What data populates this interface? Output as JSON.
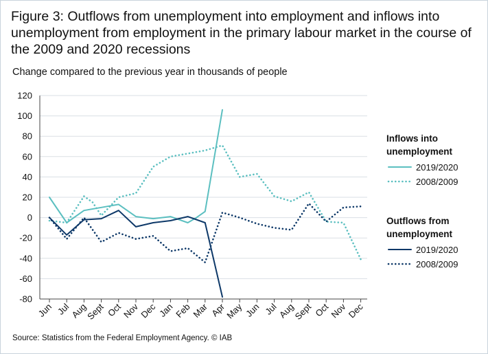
{
  "title": "Figure 3: Outflows from unemployment into employment and inflows into unemployment from employment in the primary labour market in the course of the 2009 and 2020 recessions",
  "subtitle": "Change compared to the previous year in thousands of people",
  "source": "Source: Statistics from the Federal Employment Agency. © IAB",
  "colors": {
    "inflows": "#5bbfc0",
    "outflows": "#0d3868",
    "grid": "#dadfe4",
    "axis": "#444444"
  },
  "legend": {
    "groups": [
      {
        "title_line1": "Inflows into",
        "title_line2": "unemployment",
        "items": [
          {
            "label": "2019/2020",
            "style": "solid"
          },
          {
            "label": "2008/2009",
            "style": "dotted"
          }
        ]
      },
      {
        "title_line1": "Outflows from",
        "title_line2": "unemployment",
        "items": [
          {
            "label": "2019/2020",
            "style": "solid"
          },
          {
            "label": "2008/2009",
            "style": "dotted"
          }
        ]
      }
    ]
  },
  "chart_data": {
    "type": "line",
    "categories": [
      "Jun",
      "Jul",
      "Aug",
      "Sept",
      "Oct",
      "Nov",
      "Dec",
      "Jan",
      "Feb",
      "Mar",
      "Apr",
      "May",
      "Jun",
      "Jul",
      "Aug",
      "Sept",
      "Oct",
      "Nov",
      "Dec"
    ],
    "ylim": [
      -80,
      120
    ],
    "yticks": [
      -80,
      -60,
      -40,
      -20,
      0,
      20,
      40,
      60,
      80,
      100,
      120
    ],
    "grid": "horizontal",
    "legend_position": "right",
    "series": [
      {
        "name": "Inflows into unemployment 2019/2020",
        "color_key": "inflows",
        "style": "solid",
        "x": [
          0,
          1,
          2,
          3,
          4,
          5,
          6,
          7,
          8,
          8.5,
          9,
          10
        ],
        "values": [
          20,
          -5,
          7,
          10,
          13,
          1,
          -1,
          1,
          -5,
          0,
          6,
          106
        ]
      },
      {
        "name": "Inflows into unemployment 2008/2009",
        "color_key": "inflows",
        "style": "dotted",
        "x": [
          0,
          1,
          2,
          2.5,
          3,
          4,
          5,
          6,
          7,
          8,
          9,
          10,
          11,
          12,
          13,
          14,
          15,
          16,
          17,
          18
        ],
        "values": [
          -3,
          -5,
          21,
          15,
          2,
          20,
          24,
          50,
          60,
          63,
          66,
          71,
          40,
          43,
          21,
          16,
          25,
          -4,
          -5,
          -41
        ]
      },
      {
        "name": "Outflows from unemployment 2019/2020",
        "color_key": "outflows",
        "style": "solid",
        "x": [
          0,
          1,
          2,
          3,
          4,
          5,
          6,
          7,
          8,
          9,
          10
        ],
        "values": [
          0,
          -17,
          -2,
          -1,
          7,
          -9,
          -5,
          -3,
          1,
          -5,
          -78
        ]
      },
      {
        "name": "Outflows from unemployment 2008/2009",
        "color_key": "outflows",
        "style": "dotted",
        "x": [
          0,
          1,
          2,
          3,
          4,
          5,
          6,
          7,
          8,
          9,
          10,
          11,
          12,
          13,
          14,
          15,
          16,
          17,
          18
        ],
        "values": [
          0,
          -21,
          0,
          -24,
          -15,
          -21,
          -18,
          -33,
          -30,
          -44,
          5,
          0,
          -6,
          -10,
          -12,
          14,
          -4,
          10,
          11
        ]
      }
    ]
  }
}
